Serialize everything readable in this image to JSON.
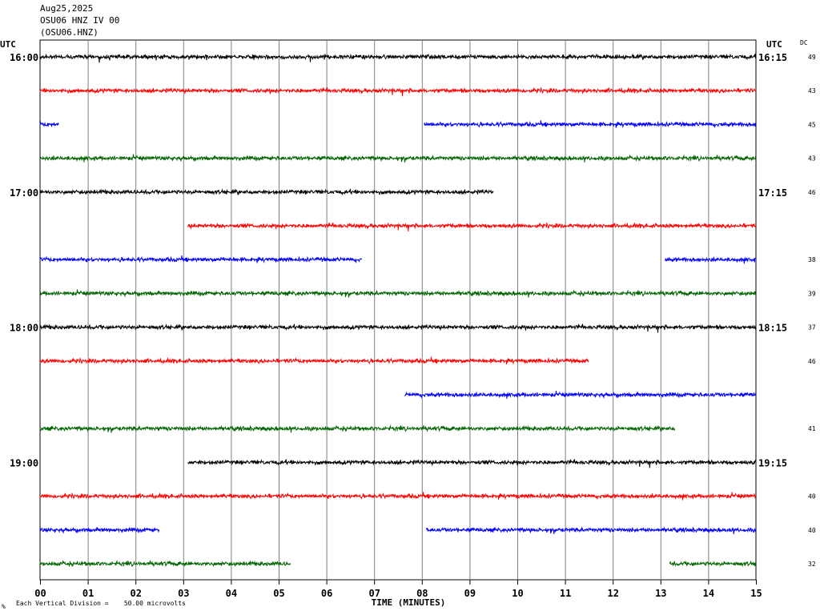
{
  "header": {
    "date": "Aug25,2025",
    "station": "OSU06 HNZ IV 00",
    "code": "(OSU06.HNZ)"
  },
  "utc_left": "UTC",
  "utc_right": "UTC",
  "dc_label": "DC",
  "footer": {
    "scale_text": "Each Vertical Division =    50.00 microvolts",
    "corner_mark": "%"
  },
  "chart_data": {
    "type": "line",
    "title": "",
    "xlabel": "TIME (MINUTES)",
    "ylabel": "",
    "x_ticks": [
      "00",
      "01",
      "02",
      "03",
      "04",
      "05",
      "06",
      "07",
      "08",
      "09",
      "10",
      "11",
      "12",
      "13",
      "14",
      "15"
    ],
    "xlim": [
      0,
      15
    ],
    "grid": "vertical lines every minute",
    "vertical_division_microvolts": 50.0,
    "left_time_labels": [
      "16:00",
      "17:00",
      "18:00",
      "19:00"
    ],
    "right_time_labels": [
      "16:15",
      "17:15",
      "18:15",
      "19:15"
    ],
    "trace_colors": [
      "#000000",
      "#ff0000",
      "#0000ff",
      "#006400"
    ],
    "traces": [
      {
        "color": "#000000",
        "segments": [
          [
            0,
            15
          ]
        ],
        "dc": "49"
      },
      {
        "color": "#ff0000",
        "segments": [
          [
            0,
            15
          ]
        ],
        "dc": "43"
      },
      {
        "color": "#0000ff",
        "segments": [
          [
            0,
            0.4
          ],
          [
            8.05,
            15
          ]
        ],
        "dc": "45"
      },
      {
        "color": "#006400",
        "segments": [
          [
            0,
            15
          ]
        ],
        "dc": "43"
      },
      {
        "color": "#000000",
        "segments": [
          [
            0,
            9.5
          ]
        ],
        "dc": "46"
      },
      {
        "color": "#ff0000",
        "segments": [
          [
            3.1,
            15
          ]
        ],
        "dc": ""
      },
      {
        "color": "#0000ff",
        "segments": [
          [
            0,
            6.75
          ],
          [
            13.1,
            15
          ]
        ],
        "dc": "38"
      },
      {
        "color": "#006400",
        "segments": [
          [
            0,
            15
          ]
        ],
        "dc": "39"
      },
      {
        "color": "#000000",
        "segments": [
          [
            0,
            15
          ]
        ],
        "dc": "37"
      },
      {
        "color": "#ff0000",
        "segments": [
          [
            0,
            11.5
          ]
        ],
        "dc": "46"
      },
      {
        "color": "#0000ff",
        "segments": [
          [
            7.65,
            15
          ]
        ],
        "dc": ""
      },
      {
        "color": "#006400",
        "segments": [
          [
            0,
            13.3
          ]
        ],
        "dc": "41"
      },
      {
        "color": "#000000",
        "segments": [
          [
            3.1,
            15
          ]
        ],
        "dc": ""
      },
      {
        "color": "#ff0000",
        "segments": [
          [
            0,
            15
          ]
        ],
        "dc": "40"
      },
      {
        "color": "#0000ff",
        "segments": [
          [
            0,
            2.5
          ],
          [
            8.1,
            15
          ]
        ],
        "dc": "40"
      },
      {
        "color": "#006400",
        "segments": [
          [
            0,
            5.25
          ],
          [
            13.2,
            15
          ]
        ],
        "dc": "32"
      }
    ]
  }
}
